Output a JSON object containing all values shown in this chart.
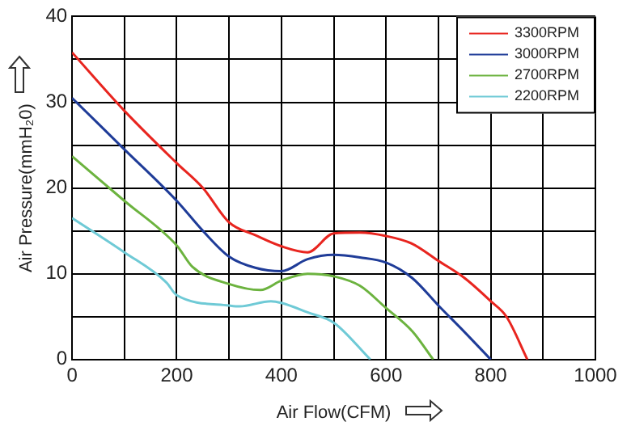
{
  "chart_data": {
    "type": "line",
    "xlabel": "Air Flow(CFM)",
    "ylabel": "Air Pressure(mmH₂0)",
    "xlim": [
      0,
      1000
    ],
    "ylim": [
      0,
      40
    ],
    "xticks": [
      0,
      {
        "value": 100,
        "label": null
      },
      200,
      {
        "value": 300,
        "label": null
      },
      400,
      {
        "value": 500,
        "label": null
      },
      600,
      {
        "value": 700,
        "label": null
      },
      800,
      {
        "value": 900,
        "label": null
      },
      1000
    ],
    "yticks": [
      0,
      {
        "value": 5,
        "label": null
      },
      10,
      {
        "value": 15,
        "label": null
      },
      20,
      {
        "value": 25,
        "label": null
      },
      30,
      {
        "value": 35,
        "label": null
      },
      40
    ],
    "grid": true,
    "legend": "top right",
    "marker": "none",
    "line_style": "solid",
    "series": [
      {
        "name": "3300RPM",
        "color": "#e8251f",
        "x": [
          0,
          100,
          200,
          250,
          300,
          350,
          400,
          450,
          500,
          550,
          600,
          650,
          700,
          750,
          800,
          830,
          870
        ],
        "values": [
          35.8,
          29,
          22.9,
          20,
          16,
          14.5,
          13.2,
          12.5,
          14.7,
          14.8,
          14.4,
          13.5,
          11.5,
          9.5,
          6.8,
          5,
          0
        ]
      },
      {
        "name": "3000RPM",
        "color": "#1f3c98",
        "x": [
          0,
          100,
          200,
          250,
          300,
          350,
          400,
          450,
          500,
          550,
          600,
          650,
          700,
          750,
          800
        ],
        "values": [
          30.5,
          24.5,
          18.5,
          15,
          12,
          10.7,
          10.3,
          11.7,
          12.2,
          11.9,
          11.3,
          9.5,
          6.3,
          3.2,
          0
        ]
      },
      {
        "name": "2700RPM",
        "color": "#6cb33f",
        "x": [
          0,
          100,
          200,
          230,
          300,
          360,
          400,
          450,
          500,
          550,
          600,
          650,
          690
        ],
        "values": [
          23.7,
          18.5,
          13.3,
          10.8,
          8.8,
          8.1,
          9.2,
          10,
          9.7,
          8.6,
          6,
          3.3,
          0
        ]
      },
      {
        "name": "2200RPM",
        "color": "#6fcad6",
        "x": [
          0,
          100,
          180,
          200,
          300,
          320,
          380,
          400,
          450,
          500,
          570
        ],
        "values": [
          16.5,
          12.5,
          9,
          7.5,
          6.3,
          6.2,
          6.8,
          6.6,
          5.5,
          4.3,
          0
        ]
      }
    ]
  }
}
